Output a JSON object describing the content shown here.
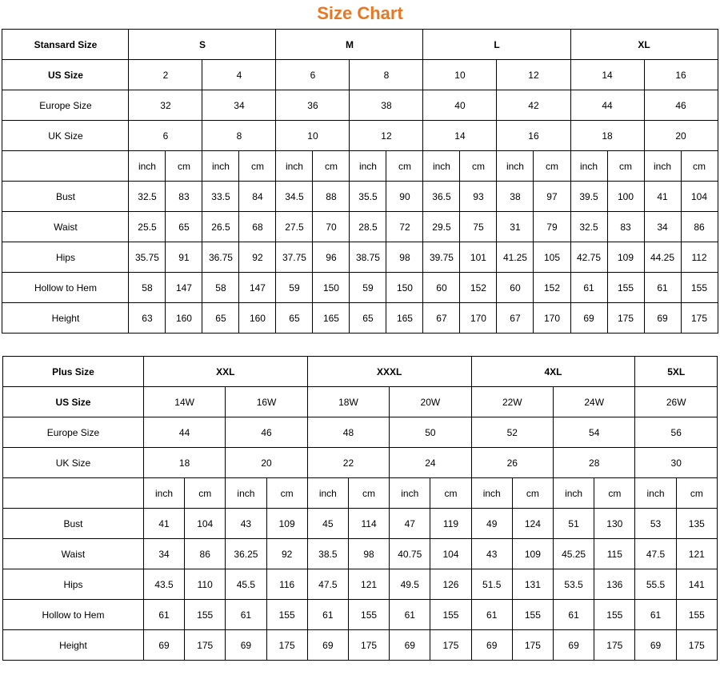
{
  "title": {
    "text": "Size Chart",
    "color": "#e87722"
  },
  "table1": {
    "header_label": "Stansard Size",
    "sizes": [
      "S",
      "M",
      "L",
      "XL"
    ],
    "us_row_label": "US Size",
    "us": [
      "2",
      "4",
      "6",
      "8",
      "10",
      "12",
      "14",
      "16"
    ],
    "eu_row_label": "Europe Size",
    "eu": [
      "32",
      "34",
      "36",
      "38",
      "40",
      "42",
      "44",
      "46"
    ],
    "uk_row_label": "UK Size",
    "uk": [
      "6",
      "8",
      "10",
      "12",
      "14",
      "16",
      "18",
      "20"
    ],
    "unit_inch": "inch",
    "unit_cm": "cm",
    "measure_labels": [
      "Bust",
      "Waist",
      "Hips",
      "Hollow to Hem",
      "Height"
    ],
    "measurements": [
      [
        "32.5",
        "83",
        "33.5",
        "84",
        "34.5",
        "88",
        "35.5",
        "90",
        "36.5",
        "93",
        "38",
        "97",
        "39.5",
        "100",
        "41",
        "104"
      ],
      [
        "25.5",
        "65",
        "26.5",
        "68",
        "27.5",
        "70",
        "28.5",
        "72",
        "29.5",
        "75",
        "31",
        "79",
        "32.5",
        "83",
        "34",
        "86"
      ],
      [
        "35.75",
        "91",
        "36.75",
        "92",
        "37.75",
        "96",
        "38.75",
        "98",
        "39.75",
        "101",
        "41.25",
        "105",
        "42.75",
        "109",
        "44.25",
        "112"
      ],
      [
        "58",
        "147",
        "58",
        "147",
        "59",
        "150",
        "59",
        "150",
        "60",
        "152",
        "60",
        "152",
        "61",
        "155",
        "61",
        "155"
      ],
      [
        "63",
        "160",
        "65",
        "160",
        "65",
        "165",
        "65",
        "165",
        "67",
        "170",
        "67",
        "170",
        "69",
        "175",
        "69",
        "175"
      ]
    ]
  },
  "table2": {
    "header_label": "Plus Size",
    "sizes": [
      "XXL",
      "XXXL",
      "4XL",
      "5XL"
    ],
    "size_spans": [
      4,
      4,
      4,
      2
    ],
    "us_row_label": "US Size",
    "us": [
      "14W",
      "16W",
      "18W",
      "20W",
      "22W",
      "24W",
      "26W"
    ],
    "eu_row_label": "Europe Size",
    "eu": [
      "44",
      "46",
      "48",
      "50",
      "52",
      "54",
      "56"
    ],
    "uk_row_label": "UK Size",
    "uk": [
      "18",
      "20",
      "22",
      "24",
      "26",
      "28",
      "30"
    ],
    "unit_inch": "inch",
    "unit_cm": "cm",
    "measure_labels": [
      "Bust",
      "Waist",
      "Hips",
      "Hollow to Hem",
      "Height"
    ],
    "measurements": [
      [
        "41",
        "104",
        "43",
        "109",
        "45",
        "114",
        "47",
        "119",
        "49",
        "124",
        "51",
        "130",
        "53",
        "135"
      ],
      [
        "34",
        "86",
        "36.25",
        "92",
        "38.5",
        "98",
        "40.75",
        "104",
        "43",
        "109",
        "45.25",
        "115",
        "47.5",
        "121"
      ],
      [
        "43.5",
        "110",
        "45.5",
        "116",
        "47.5",
        "121",
        "49.5",
        "126",
        "51.5",
        "131",
        "53.5",
        "136",
        "55.5",
        "141"
      ],
      [
        "61",
        "155",
        "61",
        "155",
        "61",
        "155",
        "61",
        "155",
        "61",
        "155",
        "61",
        "155",
        "61",
        "155"
      ],
      [
        "69",
        "175",
        "69",
        "175",
        "69",
        "175",
        "69",
        "175",
        "69",
        "175",
        "69",
        "175",
        "69",
        "175"
      ]
    ]
  }
}
